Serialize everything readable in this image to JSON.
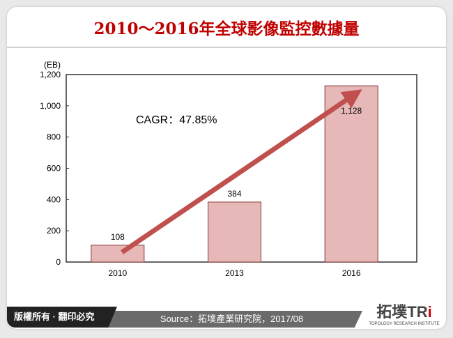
{
  "chart_data": {
    "type": "bar",
    "title": "2010～2016年全球影像監控數據量",
    "ylabel": "(EB)",
    "categories": [
      "2010",
      "2013",
      "2016"
    ],
    "values": [
      108,
      384,
      1128
    ],
    "data_labels": [
      "108",
      "384",
      "1,128"
    ],
    "ylim": [
      0,
      1200
    ],
    "yticks": [
      0,
      200,
      400,
      600,
      800,
      1000,
      1200
    ],
    "ytick_labels": [
      "0",
      "200",
      "400",
      "600",
      "800",
      "1,000",
      "1,200"
    ],
    "annotation": "CAGR：47.85%",
    "grid": false,
    "bar_color": "#e6b8b7",
    "bar_edge": "#8b3a3a",
    "arrow_color": "#c0504d"
  },
  "footer": {
    "copyright": "版權所有 · 翻印必究",
    "source": "Source：拓墣產業研究院，2017/08",
    "logo_text": "拓墣TRi",
    "logo_sub": "TOPOLOGY RESEARCH INSTITUTE"
  }
}
